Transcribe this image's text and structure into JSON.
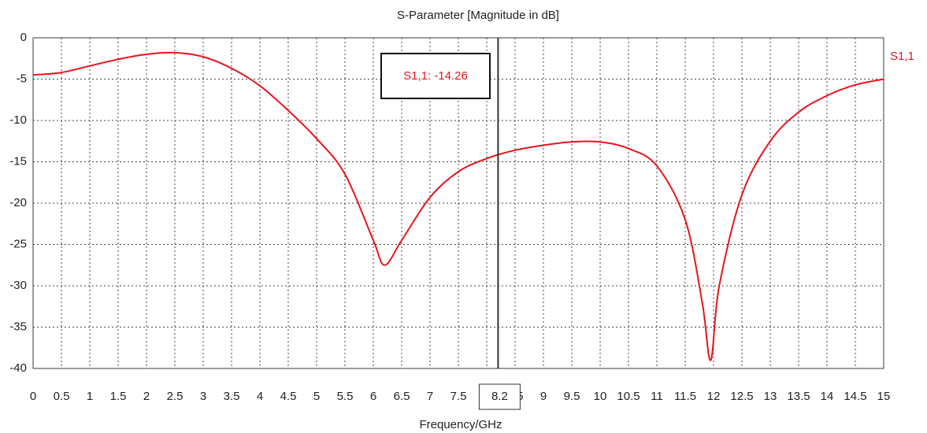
{
  "chart_data": {
    "type": "line",
    "title": "S-Parameter [Magnitude in dB]",
    "x_label": "Frequency/GHz",
    "x": [
      0,
      0.5,
      1,
      1.5,
      2,
      2.5,
      3,
      3.5,
      4,
      4.5,
      5,
      5.5,
      6,
      6.2,
      6.5,
      7,
      7.5,
      8,
      8.5,
      9,
      9.5,
      10,
      10.5,
      11,
      11.5,
      11.8,
      11.95,
      12.1,
      12.5,
      13,
      13.5,
      14,
      14.5,
      15
    ],
    "series": [
      {
        "name": "S1,1",
        "color": "#e8141c",
        "values": [
          -4.5,
          -4.2,
          -3.4,
          -2.6,
          -2.0,
          -1.8,
          -2.3,
          -3.7,
          -5.8,
          -8.8,
          -12.2,
          -16.5,
          -24.5,
          -27.5,
          -24.5,
          -19.3,
          -16.2,
          -14.6,
          -13.6,
          -13.0,
          -12.6,
          -12.6,
          -13.4,
          -15.5,
          -22,
          -32,
          -39,
          -30,
          -19,
          -12.5,
          -9,
          -7,
          -5.7,
          -5.0
        ]
      }
    ],
    "xlim": [
      0,
      15
    ],
    "ylim": [
      -40,
      0
    ],
    "xticks": [
      0,
      0.5,
      1,
      1.5,
      2,
      2.5,
      3,
      3.5,
      4,
      4.5,
      5,
      5.5,
      6,
      6.5,
      7,
      7.5,
      8,
      8.5,
      9,
      9.5,
      10,
      10.5,
      11,
      11.5,
      12,
      12.5,
      13,
      13.5,
      14,
      14.5,
      15
    ],
    "yticks": [
      0,
      -5,
      -10,
      -15,
      -20,
      -25,
      -30,
      -35,
      -40
    ],
    "grid": true,
    "marker": {
      "x": 8.2,
      "label": "S1,1: -14.26"
    }
  }
}
